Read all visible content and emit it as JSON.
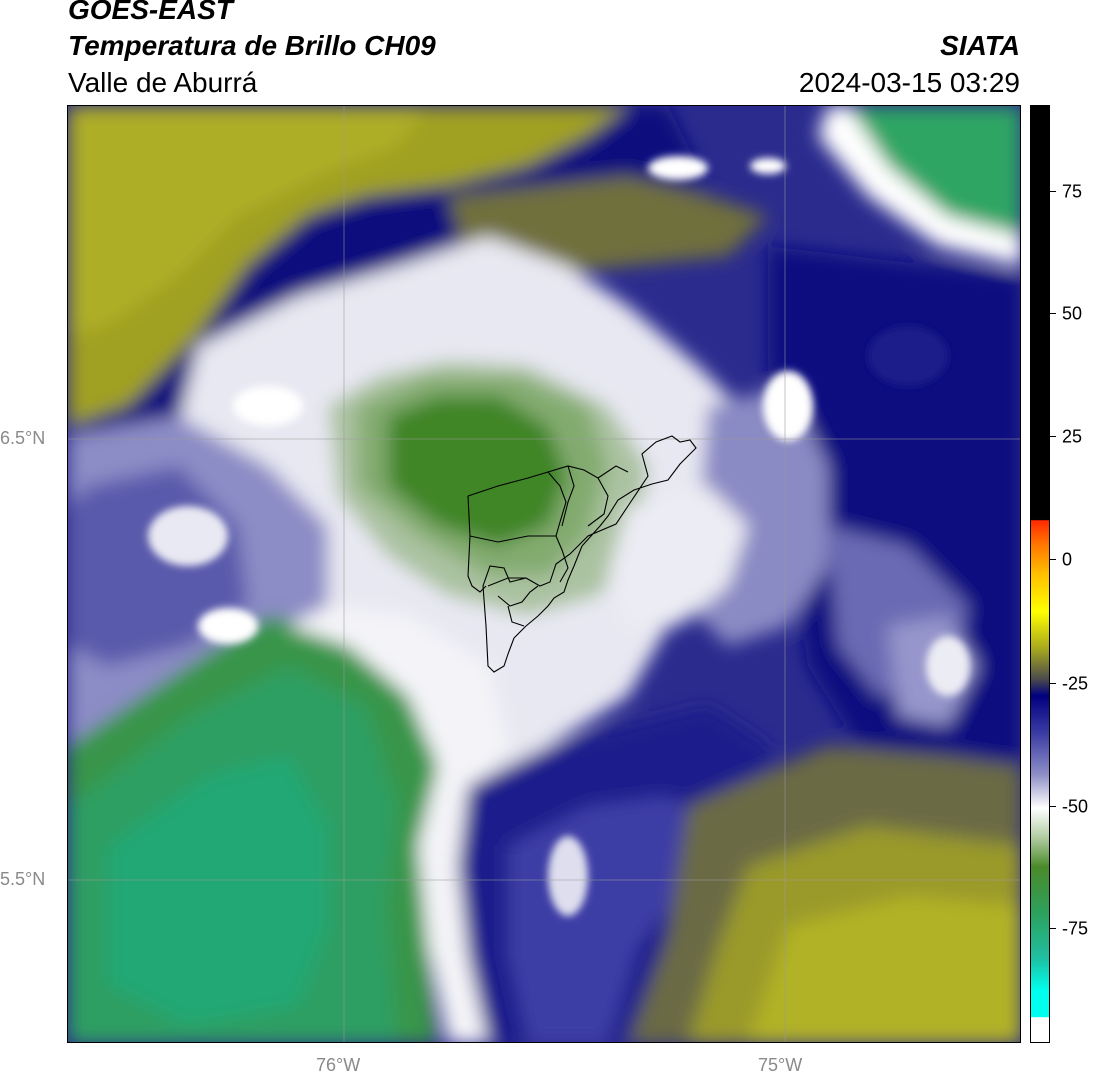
{
  "header": {
    "satellite": "GOES-EAST",
    "product": "Temperatura de Brillo CH09",
    "agency": "SIATA",
    "region": "Valle de Aburrá",
    "datetime": "2024-03-15 03:29"
  },
  "map": {
    "lat_labels": [
      "6.5°N",
      "5.5°N"
    ],
    "lon_labels": [
      "76°W",
      "75°W"
    ]
  },
  "colorbar": {
    "ticks": [
      "75",
      "50",
      "25",
      "0",
      "-25",
      "-50",
      "-75"
    ],
    "colors": {
      "top": "#000000",
      "warm": "#ff2a00",
      "yellow": "#ffff00",
      "olive": "#a7a71f",
      "navy": "#000080",
      "white": "#ffffff",
      "green": "#4a8a2a",
      "teal": "#1fbfa0",
      "cyan": "#00ffee"
    }
  }
}
